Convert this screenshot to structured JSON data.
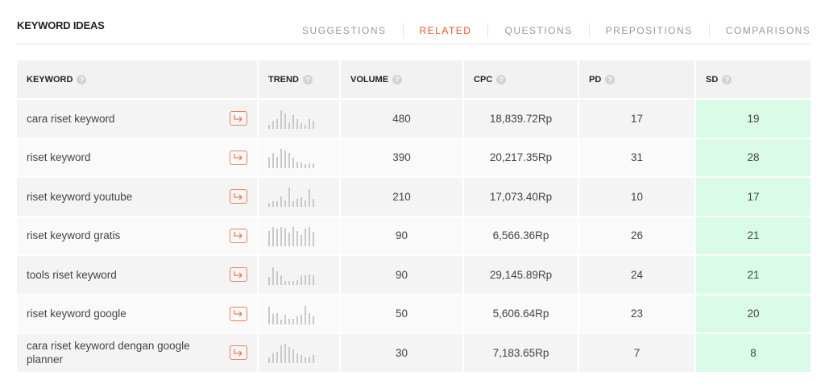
{
  "header": {
    "title": "KEYWORD IDEAS"
  },
  "tabs": [
    {
      "label": "SUGGESTIONS",
      "active": false
    },
    {
      "label": "RELATED",
      "active": true
    },
    {
      "label": "QUESTIONS",
      "active": false
    },
    {
      "label": "PREPOSITIONS",
      "active": false
    },
    {
      "label": "COMPARISONS",
      "active": false
    }
  ],
  "columns": {
    "keyword": "KEYWORD",
    "trend": "TREND",
    "volume": "VOLUME",
    "cpc": "CPC",
    "pd": "PD",
    "sd": "SD"
  },
  "colors": {
    "accent": "#e5582b",
    "sd_highlight": "#dbfbe9",
    "trend_bar": "#c9c9c9"
  },
  "rows": [
    {
      "keyword": "cara riset keyword",
      "volume": "480",
      "cpc": "18,839.72Rp",
      "pd": "17",
      "sd": "19",
      "trend": [
        0.2,
        0.4,
        0.5,
        0.95,
        0.8,
        0.35,
        0.7,
        0.5,
        0.3,
        0.2,
        0.5,
        0.4
      ]
    },
    {
      "keyword": "riset keyword",
      "volume": "390",
      "cpc": "20,217.35Rp",
      "pd": "31",
      "sd": "28",
      "trend": [
        0.6,
        0.8,
        0.6,
        1.0,
        0.9,
        0.8,
        0.55,
        0.35,
        0.3,
        0.2,
        0.25,
        0.25
      ]
    },
    {
      "keyword": "riset keyword youtube",
      "volume": "210",
      "cpc": "17,073.40Rp",
      "pd": "10",
      "sd": "17",
      "trend": [
        0.2,
        0.3,
        0.3,
        0.55,
        0.35,
        1.0,
        0.3,
        0.4,
        0.5,
        0.35,
        0.9,
        0.4
      ]
    },
    {
      "keyword": "riset keyword gratis",
      "volume": "90",
      "cpc": "6,566.36Rp",
      "pd": "26",
      "sd": "21",
      "trend": [
        0.8,
        1.0,
        0.9,
        1.0,
        0.95,
        0.7,
        1.0,
        0.8,
        0.6,
        0.9,
        1.0,
        0.75
      ]
    },
    {
      "keyword": "tools riset keyword",
      "volume": "90",
      "cpc": "29,145.89Rp",
      "pd": "24",
      "sd": "21",
      "trend": [
        0.4,
        0.9,
        0.7,
        0.5,
        0.2,
        0.2,
        0.2,
        0.25,
        0.5,
        0.5,
        0.55,
        0.5
      ]
    },
    {
      "keyword": "riset keyword google",
      "volume": "50",
      "cpc": "5,606.64Rp",
      "pd": "23",
      "sd": "20",
      "trend": [
        0.9,
        0.55,
        0.6,
        0.25,
        0.5,
        0.3,
        0.3,
        0.4,
        0.5,
        0.95,
        0.6,
        0.4
      ]
    },
    {
      "keyword": "cara riset keyword dengan google planner",
      "volume": "30",
      "cpc": "7,183.65Rp",
      "pd": "7",
      "sd": "8",
      "trend": [
        0.3,
        0.5,
        0.6,
        0.9,
        1.0,
        0.85,
        0.7,
        0.5,
        0.4,
        0.3,
        0.35,
        0.4
      ]
    }
  ]
}
